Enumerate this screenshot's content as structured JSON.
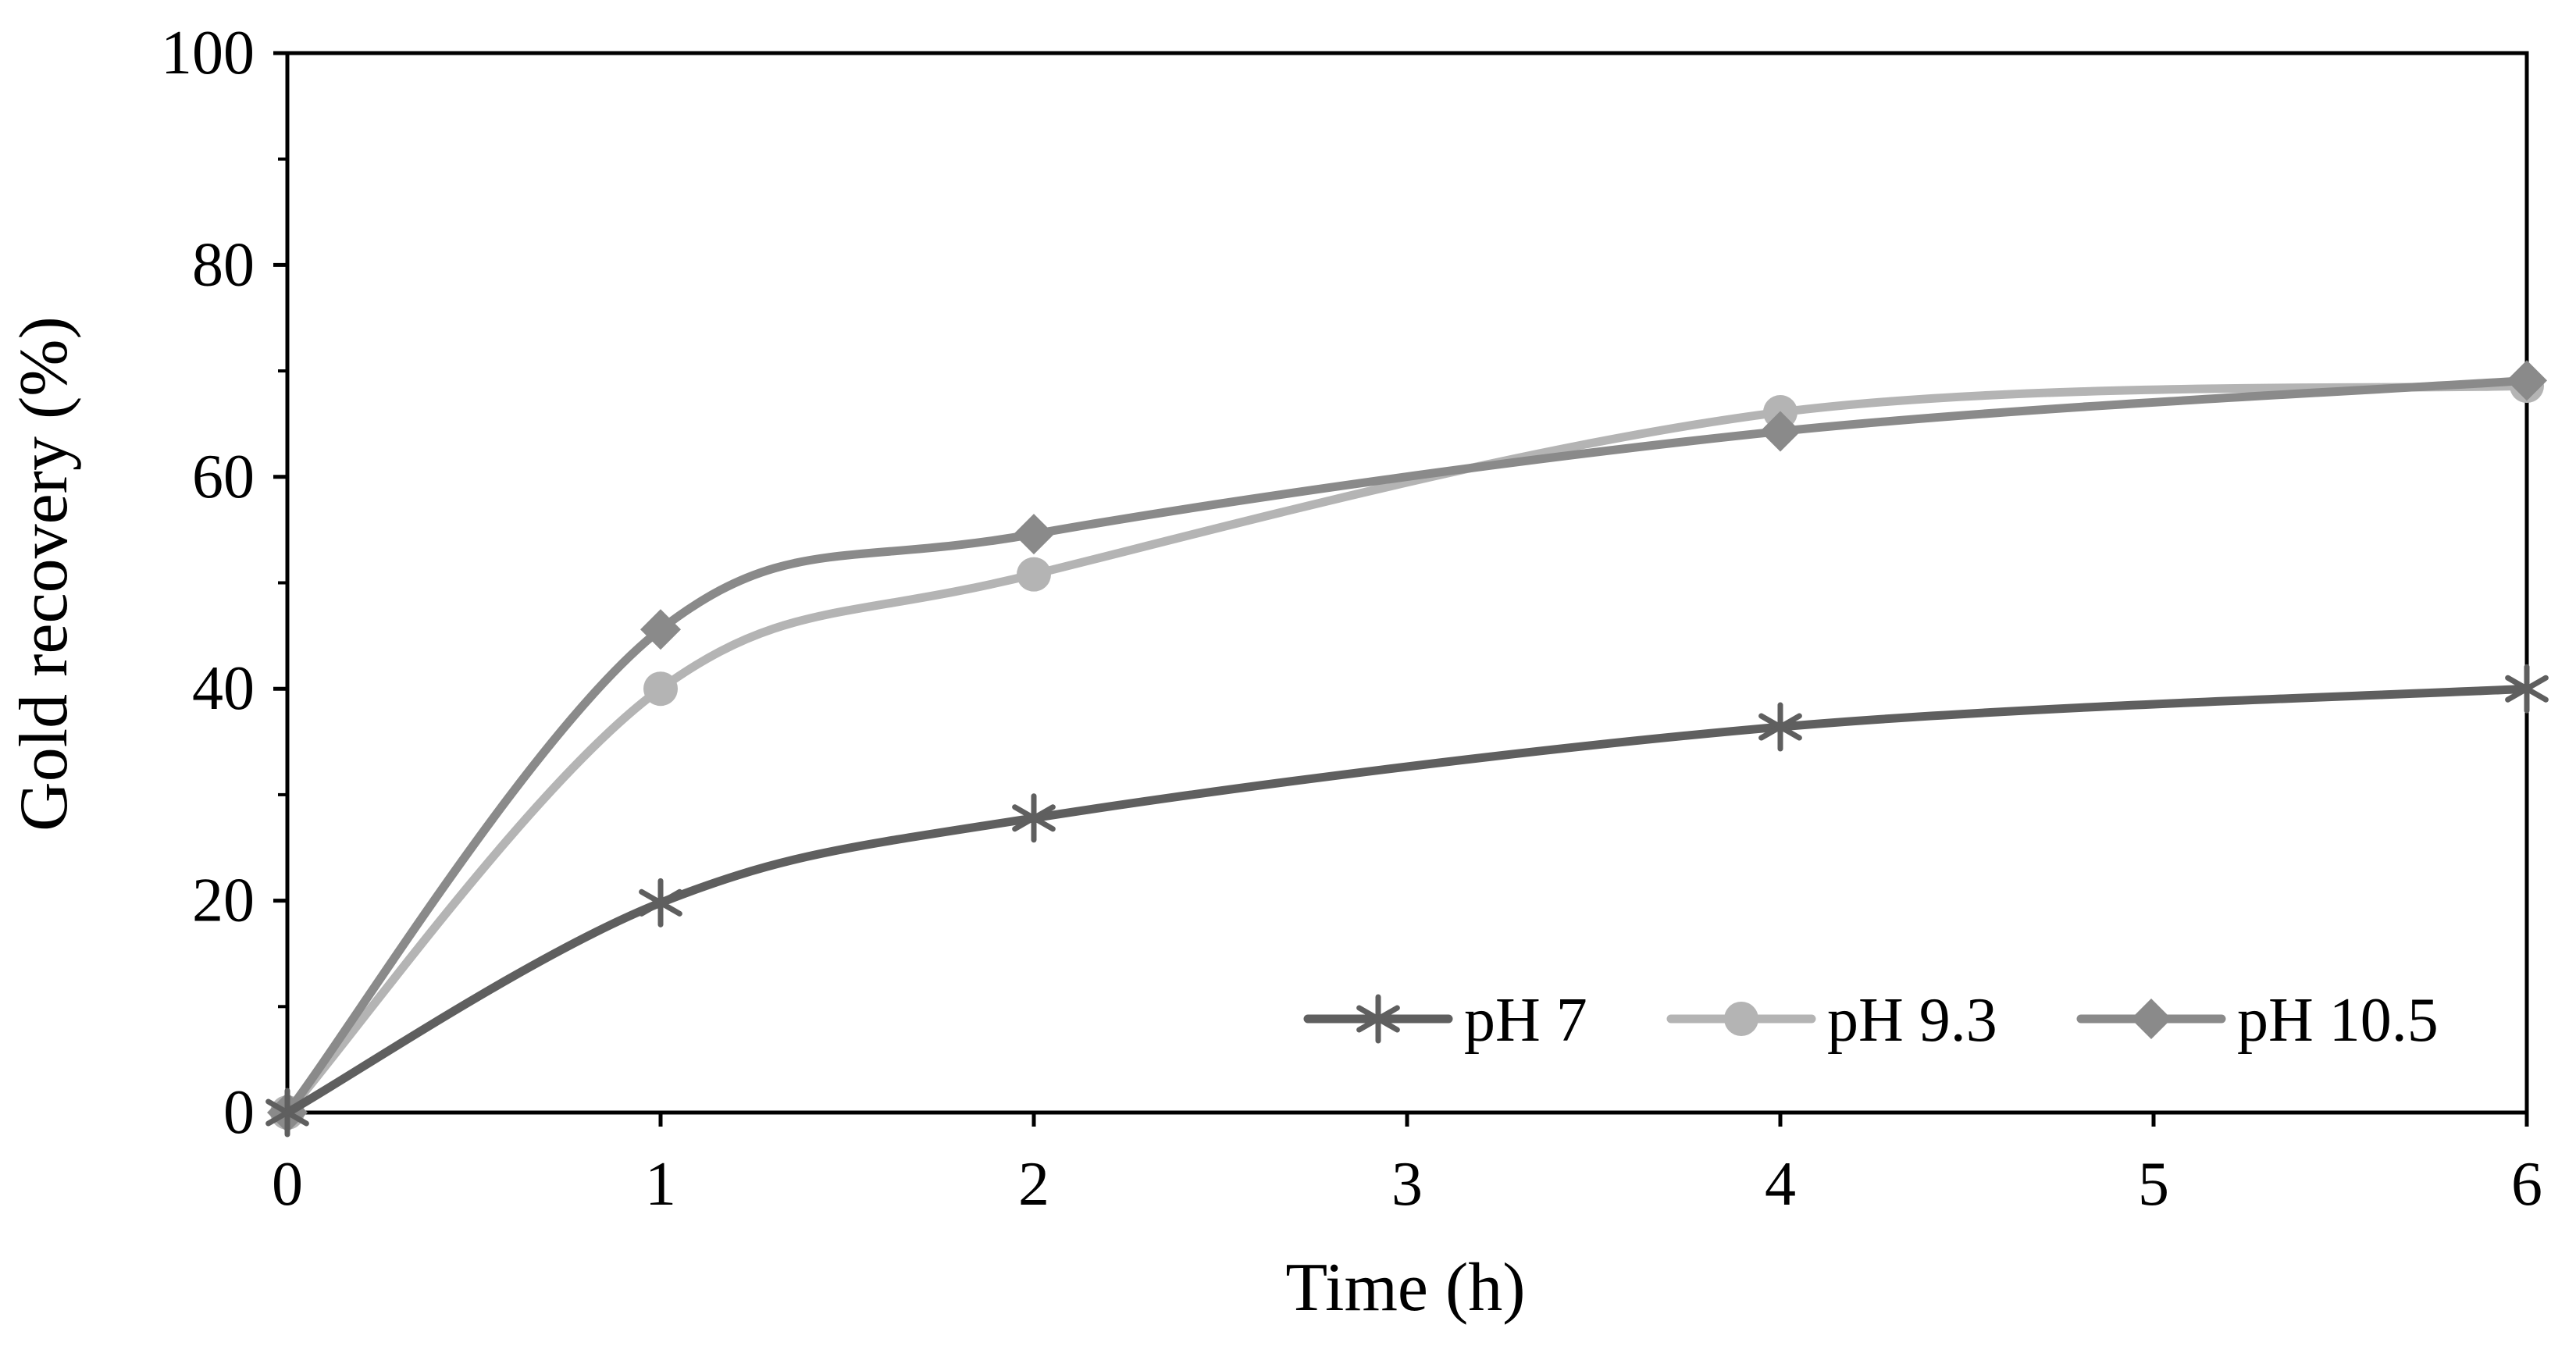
{
  "chart_data": {
    "type": "line",
    "title": "",
    "xlabel": "Time (h)",
    "ylabel": "Gold recovery (%)",
    "xlim": [
      0,
      6
    ],
    "ylim": [
      0,
      100
    ],
    "x_ticks": [
      0,
      1,
      2,
      3,
      4,
      5,
      6
    ],
    "x_tick_labels": [
      "0",
      "1",
      "2",
      "3",
      "4",
      "5",
      "6"
    ],
    "y_ticks": [
      0,
      20,
      40,
      60,
      80,
      100
    ],
    "y_tick_labels": [
      "0",
      "20",
      "40",
      "60",
      "80",
      "100"
    ],
    "y_minor_step": 10,
    "grid": false,
    "legend_position": "bottom-right",
    "series": [
      {
        "name": "pH 7",
        "marker": "asterisk",
        "color": "#5f5f5f",
        "x": [
          0,
          1,
          2,
          4,
          6
        ],
        "values": [
          0,
          19.8,
          27.8,
          36.4,
          40
        ]
      },
      {
        "name": "pH 9.3",
        "marker": "circle",
        "color": "#b4b4b4",
        "x": [
          0,
          1,
          2,
          4,
          6
        ],
        "values": [
          0,
          40,
          50.8,
          66.1,
          68.6
        ]
      },
      {
        "name": "pH 10.5",
        "marker": "diamond",
        "color": "#8a8a8a",
        "x": [
          0,
          1,
          2,
          4,
          6
        ],
        "values": [
          0,
          45.6,
          54.6,
          64.3,
          69.1
        ]
      }
    ]
  }
}
